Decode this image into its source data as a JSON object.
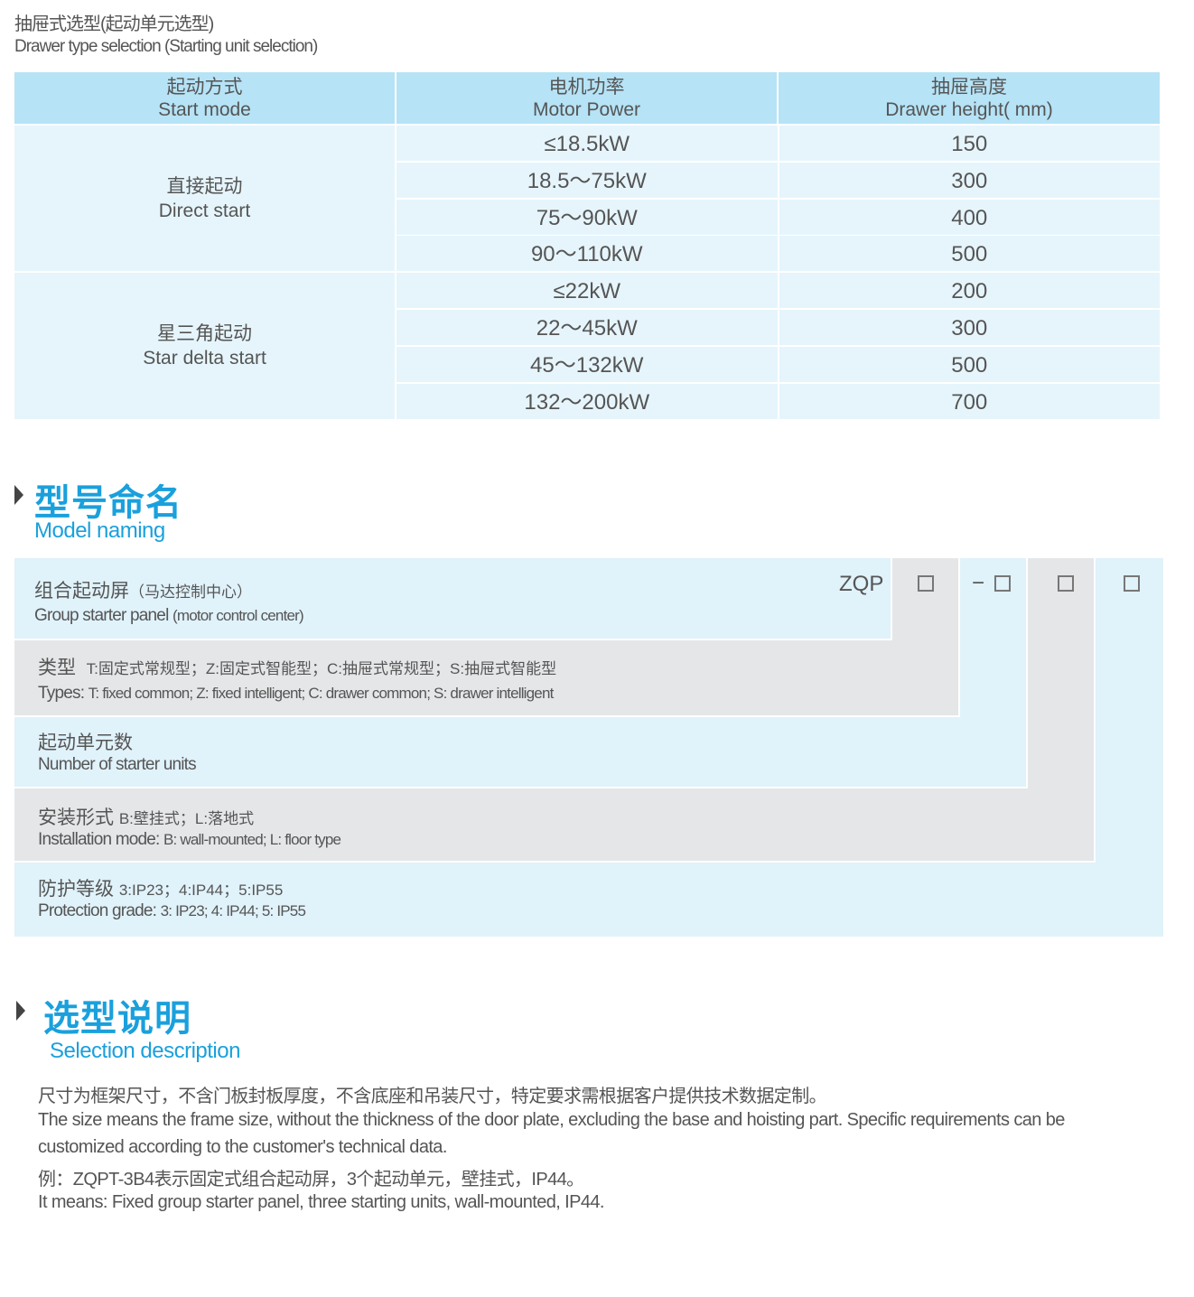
{
  "drawer_section": {
    "title_cn": "抽屉式选型(起动单元选型)",
    "title_en": "Drawer type selection (Starting unit selection)"
  },
  "table": {
    "headers": [
      {
        "cn": "起动方式",
        "en": "Start mode"
      },
      {
        "cn": "电机功率",
        "en": "Motor Power"
      },
      {
        "cn": "抽屉高度",
        "en": "Drawer height( mm)"
      }
    ],
    "groups": [
      {
        "mode_cn": "直接起动",
        "mode_en": "Direct start",
        "rows": [
          {
            "power": "≤18.5kW",
            "height": "150"
          },
          {
            "power": "18.5～75kW",
            "height": "300"
          },
          {
            "power": "75～90kW",
            "height": "400"
          },
          {
            "power": "90～110kW",
            "height": "500"
          }
        ]
      },
      {
        "mode_cn": "星三角起动",
        "mode_en": "Star delta start",
        "rows": [
          {
            "power": "≤22kW",
            "height": "200"
          },
          {
            "power": "22～45kW",
            "height": "300"
          },
          {
            "power": "45～132kW",
            "height": "500"
          },
          {
            "power": "132～200kW",
            "height": "700"
          }
        ]
      }
    ]
  },
  "model_naming": {
    "title_cn": "型号命名",
    "title_en": "Model naming",
    "prefix": "ZQP",
    "dash": "−",
    "rows": [
      {
        "cn": "组合起动屏",
        "cn_note": "（马达控制中心）",
        "en": "Group starter panel",
        "en_note": "(motor control center)"
      },
      {
        "cn": "类型",
        "cn_note": "T:固定式常规型；Z:固定式智能型；C:抽屉式常规型；S:抽屉式智能型",
        "en": "Types:",
        "en_note": "T: fixed common; Z: fixed intelligent; C: drawer common; S: drawer intelligent"
      },
      {
        "cn": "起动单元数",
        "cn_note": "",
        "en": "Number of starter units",
        "en_note": ""
      },
      {
        "cn": "安装形式",
        "cn_note": "B:壁挂式；L:落地式",
        "en": "Installation mode:",
        "en_note": "B: wall-mounted; L: floor type"
      },
      {
        "cn": "防护等级",
        "cn_note": "3:IP23；4:IP44；5:IP55",
        "en": "Protection grade:",
        "en_note": "3: IP23; 4: IP44; 5: IP55"
      }
    ]
  },
  "selection_description": {
    "title_cn": "选型说明",
    "title_en": "Selection description",
    "lines": [
      "尺寸为框架尺寸，不含门板封板厚度，不含底座和吊装尺寸，特定要求需根据客户提供技术数据定制。",
      "The size means the frame size, without the thickness of the door plate, excluding the base and hoisting part. Specific requirements can be",
      "customized according to the customer's technical data.",
      "例：ZQPT-3B4表示固定式组合起动屏，3个起动单元，壁挂式，IP44。",
      "It means: Fixed group starter panel, three starting units, wall-mounted, IP44."
    ]
  },
  "colors": {
    "accent": "#1aa0dc",
    "header_bg": "#b6e3f6",
    "cell_bg": "#e6f5fc",
    "gray_bg": "#e5e6e8",
    "text": "#555555"
  }
}
